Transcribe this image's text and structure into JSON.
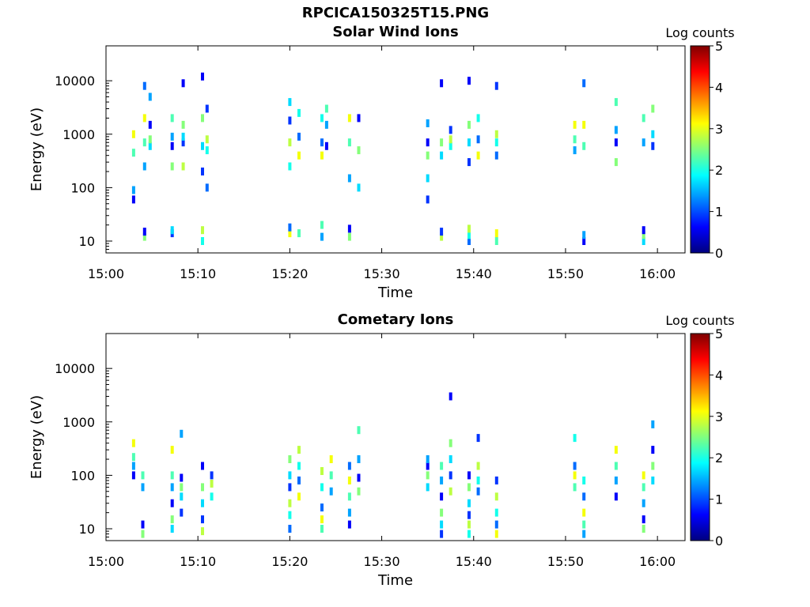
{
  "figure_title": "RPCICA150325T15.PNG",
  "colorbar": {
    "label": "Log counts",
    "ticks": [
      "0",
      "1",
      "2",
      "3",
      "4",
      "5"
    ],
    "range": [
      0,
      5
    ],
    "colormap": "jet"
  },
  "chart_data": [
    {
      "type": "heatmap",
      "title": "Solar Wind Ions",
      "xlabel": "Time",
      "ylabel": "Energy (eV)",
      "x_ticks": [
        "15:00",
        "15:10",
        "15:20",
        "15:30",
        "15:40",
        "15:50",
        "16:00"
      ],
      "y_ticks": [
        "10",
        "100",
        "1000",
        "10000"
      ],
      "y_scale": "log",
      "ylim": [
        6,
        45000
      ],
      "xlim_minutes": [
        0,
        63
      ],
      "series": [
        {
          "t": 3.0,
          "e": [
            60,
            90,
            450,
            1000
          ]
        },
        {
          "t": 4.2,
          "e": [
            12,
            15,
            250,
            700,
            2000,
            8000
          ]
        },
        {
          "t": 4.8,
          "e": [
            600,
            800,
            1500,
            5000
          ]
        },
        {
          "t": 7.2,
          "e": [
            14,
            16,
            250,
            600,
            900,
            2000
          ]
        },
        {
          "t": 8.4,
          "e": [
            250,
            700,
            900,
            1500,
            9000
          ]
        },
        {
          "t": 10.5,
          "e": [
            10,
            16,
            200,
            600,
            2000,
            12000
          ]
        },
        {
          "t": 11.0,
          "e": [
            100,
            500,
            800,
            3000
          ]
        },
        {
          "t": 20.0,
          "e": [
            14,
            18,
            250,
            700,
            1800,
            4000
          ]
        },
        {
          "t": 21.0,
          "e": [
            14,
            400,
            900,
            2500
          ]
        },
        {
          "t": 23.5,
          "e": [
            12,
            20,
            400,
            700,
            2000
          ]
        },
        {
          "t": 24.0,
          "e": [
            600,
            1500,
            3000
          ]
        },
        {
          "t": 26.5,
          "e": [
            12,
            17,
            150,
            700,
            2000
          ]
        },
        {
          "t": 27.5,
          "e": [
            100,
            500,
            2000
          ]
        },
        {
          "t": 35.0,
          "e": [
            60,
            150,
            400,
            700,
            1600
          ]
        },
        {
          "t": 36.5,
          "e": [
            12,
            15,
            400,
            700,
            9000
          ]
        },
        {
          "t": 37.5,
          "e": [
            600,
            800,
            1200
          ]
        },
        {
          "t": 39.5,
          "e": [
            10,
            13,
            17,
            300,
            700,
            1500,
            10000
          ]
        },
        {
          "t": 40.5,
          "e": [
            400,
            800,
            2000
          ]
        },
        {
          "t": 42.5,
          "e": [
            10,
            14,
            400,
            700,
            1000,
            8000
          ]
        },
        {
          "t": 51.0,
          "e": [
            500,
            800,
            1500
          ]
        },
        {
          "t": 52.0,
          "e": [
            10,
            13,
            600,
            1500,
            9000
          ]
        },
        {
          "t": 55.5,
          "e": [
            300,
            700,
            1200,
            4000
          ]
        },
        {
          "t": 58.5,
          "e": [
            10,
            13,
            16,
            700,
            2000
          ]
        },
        {
          "t": 59.5,
          "e": [
            600,
            1000,
            3000
          ]
        }
      ]
    },
    {
      "type": "heatmap",
      "title": "Cometary Ions",
      "xlabel": "Time",
      "ylabel": "Energy (eV)",
      "x_ticks": [
        "15:00",
        "15:10",
        "15:20",
        "15:30",
        "15:40",
        "15:50",
        "16:00"
      ],
      "y_ticks": [
        "10",
        "100",
        "1000",
        "10000"
      ],
      "y_scale": "log",
      "ylim": [
        6,
        45000
      ],
      "xlim_minutes": [
        0,
        63
      ],
      "series": [
        {
          "t": 3.0,
          "e": [
            100,
            150,
            220,
            400
          ]
        },
        {
          "t": 4.0,
          "e": [
            8,
            12,
            60,
            100
          ]
        },
        {
          "t": 7.2,
          "e": [
            10,
            15,
            30,
            60,
            100,
            300
          ]
        },
        {
          "t": 8.2,
          "e": [
            20,
            40,
            60,
            90,
            600
          ]
        },
        {
          "t": 10.5,
          "e": [
            9,
            15,
            30,
            60,
            150
          ]
        },
        {
          "t": 11.5,
          "e": [
            40,
            70,
            100
          ]
        },
        {
          "t": 20.0,
          "e": [
            10,
            18,
            30,
            60,
            100,
            200
          ]
        },
        {
          "t": 21.0,
          "e": [
            40,
            80,
            150,
            300
          ]
        },
        {
          "t": 23.5,
          "e": [
            10,
            15,
            25,
            60,
            120
          ]
        },
        {
          "t": 24.5,
          "e": [
            50,
            100,
            200
          ]
        },
        {
          "t": 26.5,
          "e": [
            12,
            20,
            40,
            80,
            150
          ]
        },
        {
          "t": 27.5,
          "e": [
            50,
            90,
            200,
            700
          ]
        },
        {
          "t": 35.0,
          "e": [
            60,
            100,
            150,
            200
          ]
        },
        {
          "t": 36.5,
          "e": [
            8,
            12,
            20,
            40,
            80,
            150
          ]
        },
        {
          "t": 37.5,
          "e": [
            50,
            100,
            200,
            400,
            3000
          ]
        },
        {
          "t": 39.5,
          "e": [
            8,
            12,
            18,
            30,
            60,
            100
          ]
        },
        {
          "t": 40.5,
          "e": [
            50,
            80,
            150,
            500
          ]
        },
        {
          "t": 42.5,
          "e": [
            8,
            12,
            20,
            40,
            80
          ]
        },
        {
          "t": 51.0,
          "e": [
            60,
            100,
            150,
            500
          ]
        },
        {
          "t": 52.0,
          "e": [
            8,
            12,
            20,
            40,
            80
          ]
        },
        {
          "t": 55.5,
          "e": [
            40,
            80,
            150,
            300
          ]
        },
        {
          "t": 58.5,
          "e": [
            10,
            15,
            30,
            60,
            100
          ]
        },
        {
          "t": 59.5,
          "e": [
            80,
            150,
            300,
            900
          ]
        }
      ]
    }
  ]
}
